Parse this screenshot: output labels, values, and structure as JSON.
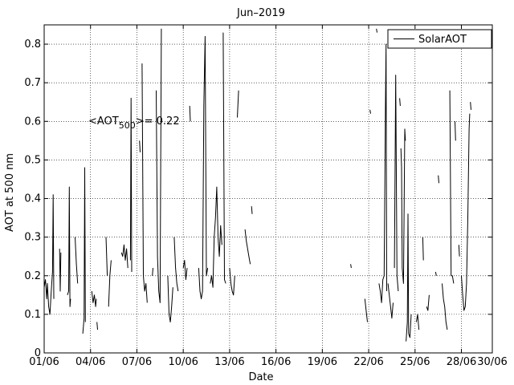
{
  "chart_data": {
    "type": "line",
    "title": "Jun–2019",
    "xlabel": "Date",
    "ylabel": "AOT at 500 nm",
    "xlim": [
      "2019-06-01",
      "2019-06-30"
    ],
    "ylim": [
      0,
      0.85
    ],
    "x_tick_labels": [
      "01/06",
      "04/06",
      "07/06",
      "10/06",
      "13/06",
      "16/06",
      "19/06",
      "22/06",
      "25/06",
      "28/06",
      "30/06"
    ],
    "x_tick_dates": [
      "2019-06-01",
      "2019-06-04",
      "2019-06-07",
      "2019-06-10",
      "2019-06-13",
      "2019-06-16",
      "2019-06-19",
      "2019-06-22",
      "2019-06-25",
      "2019-06-28",
      "2019-06-30"
    ],
    "y_ticks": [
      0,
      0.1,
      0.2,
      0.3,
      0.4,
      0.5,
      0.6,
      0.7,
      0.8
    ],
    "y_tick_labels": [
      "0",
      "0.1",
      "0.2",
      "0.3",
      "0.4",
      "0.5",
      "0.6",
      "0.7",
      "0.8"
    ],
    "grid": true,
    "legend_position": "top-right",
    "annotation": {
      "prefix": "<AOT",
      "subscript": "500",
      "suffix": ">= 0.22",
      "x": "2019-06-06",
      "y": 0.6
    },
    "series": [
      {
        "name": "SolarAOT",
        "color": "#000000",
        "segments": [
          [
            [
              "2019-06-01 00:00",
              0.17
            ],
            [
              "2019-06-01 02:00",
              0.19
            ],
            [
              "2019-06-01 04:00",
              0.14
            ],
            [
              "2019-06-01 05:00",
              0.18
            ],
            [
              "2019-06-01 07:00",
              0.12
            ],
            [
              "2019-06-01 09:00",
              0.1
            ],
            [
              "2019-06-01 11:00",
              0.16
            ],
            [
              "2019-06-01 13:00",
              0.21
            ],
            [
              "2019-06-01 14:00",
              0.41
            ],
            [
              "2019-06-01 15:00",
              0.14
            ]
          ],
          [
            [
              "2019-06-02 00:00",
              0.27
            ],
            [
              "2019-06-02 01:00",
              0.16
            ],
            [
              "2019-06-02 02:00",
              0.26
            ]
          ],
          [
            [
              "2019-06-02 12:00",
              0.15
            ],
            [
              "2019-06-02 14:00",
              0.16
            ],
            [
              "2019-06-02 15:00",
              0.43
            ],
            [
              "2019-06-02 16:00",
              0.12
            ],
            [
              "2019-06-02 17:00",
              0.14
            ]
          ],
          [
            [
              "2019-06-03 00:00",
              0.3
            ],
            [
              "2019-06-03 02:00",
              0.23
            ],
            [
              "2019-06-03 04:00",
              0.18
            ]
          ],
          [
            [
              "2019-06-03 12:00",
              0.05
            ],
            [
              "2019-06-03 14:00",
              0.09
            ],
            [
              "2019-06-03 15:00",
              0.48
            ],
            [
              "2019-06-03 16:00",
              0.08
            ]
          ],
          [
            [
              "2019-06-04 02:00",
              0.16
            ],
            [
              "2019-06-04 04:00",
              0.13
            ],
            [
              "2019-06-04 06:00",
              0.15
            ],
            [
              "2019-06-04 08:00",
              0.12
            ],
            [
              "2019-06-04 09:00",
              0.14
            ]
          ],
          [
            [
              "2019-06-04 10:00",
              0.08
            ],
            [
              "2019-06-04 11:00",
              0.06
            ]
          ],
          [
            [
              "2019-06-05 00:00",
              0.3
            ],
            [
              "2019-06-05 02:00",
              0.2
            ]
          ],
          [
            [
              "2019-06-05 04:00",
              0.12
            ],
            [
              "2019-06-05 06:00",
              0.2
            ],
            [
              "2019-06-05 08:00",
              0.24
            ]
          ],
          [
            [
              "2019-06-06 00:00",
              0.26
            ],
            [
              "2019-06-06 02:00",
              0.25
            ],
            [
              "2019-06-06 04:00",
              0.28
            ],
            [
              "2019-06-06 06:00",
              0.24
            ],
            [
              "2019-06-06 08:00",
              0.27
            ],
            [
              "2019-06-06 10:00",
              0.22
            ]
          ],
          [
            [
              "2019-06-06 14:00",
              0.24
            ],
            [
              "2019-06-06 15:00",
              0.66
            ],
            [
              "2019-06-06 16:00",
              0.21
            ]
          ],
          [
            [
              "2019-06-07 04:00",
              0.55
            ],
            [
              "2019-06-07 05:00",
              0.52
            ]
          ],
          [
            [
              "2019-06-07 08:00",
              0.75
            ],
            [
              "2019-06-07 10:00",
              0.2
            ],
            [
              "2019-06-07 12:00",
              0.16
            ],
            [
              "2019-06-07 14:00",
              0.18
            ],
            [
              "2019-06-07 16:00",
              0.13
            ]
          ],
          [
            [
              "2019-06-08 00:00",
              0.2
            ],
            [
              "2019-06-08 01:00",
              0.22
            ]
          ],
          [
            [
              "2019-06-08 06:00",
              0.68
            ],
            [
              "2019-06-08 08:00",
              0.25
            ],
            [
              "2019-06-08 10:00",
              0.16
            ],
            [
              "2019-06-08 12:00",
              0.13
            ],
            [
              "2019-06-08 14:00",
              0.84
            ]
          ],
          [
            [
              "2019-06-09 00:00",
              0.2
            ],
            [
              "2019-06-09 02:00",
              0.1
            ],
            [
              "2019-06-09 04:00",
              0.08
            ],
            [
              "2019-06-09 06:00",
              0.12
            ],
            [
              "2019-06-09 08:00",
              0.17
            ]
          ],
          [
            [
              "2019-06-09 10:00",
              0.3
            ],
            [
              "2019-06-09 12:00",
              0.22
            ],
            [
              "2019-06-09 14:00",
              0.18
            ],
            [
              "2019-06-09 16:00",
              0.16
            ]
          ],
          [
            [
              "2019-06-10 00:00",
              0.22
            ],
            [
              "2019-06-10 02:00",
              0.24
            ],
            [
              "2019-06-10 04:00",
              0.19
            ],
            [
              "2019-06-10 06:00",
              0.22
            ]
          ],
          [
            [
              "2019-06-10 10:00",
              0.64
            ],
            [
              "2019-06-10 11:00",
              0.6
            ]
          ],
          [
            [
              "2019-06-11 00:00",
              0.22
            ],
            [
              "2019-06-11 02:00",
              0.16
            ],
            [
              "2019-06-11 04:00",
              0.14
            ],
            [
              "2019-06-11 06:00",
              0.16
            ],
            [
              "2019-06-11 08:00",
              0.64
            ],
            [
              "2019-06-11 10:00",
              0.82
            ],
            [
              "2019-06-11 12:00",
              0.2
            ],
            [
              "2019-06-11 14:00",
              0.22
            ]
          ],
          [
            [
              "2019-06-11 18:00",
              0.18
            ],
            [
              "2019-06-11 20:00",
              0.2
            ],
            [
              "2019-06-11 22:00",
              0.17
            ],
            [
              "2019-06-12 00:00",
              0.3
            ],
            [
              "2019-06-12 02:00",
              0.35
            ],
            [
              "2019-06-12 04:00",
              0.43
            ],
            [
              "2019-06-12 06:00",
              0.3
            ],
            [
              "2019-06-12 08:00",
              0.25
            ],
            [
              "2019-06-12 10:00",
              0.33
            ],
            [
              "2019-06-12 12:00",
              0.28
            ]
          ],
          [
            [
              "2019-06-12 14:00",
              0.83
            ],
            [
              "2019-06-12 16:00",
              0.19
            ],
            [
              "2019-06-12 18:00",
              0.18
            ]
          ],
          [
            [
              "2019-06-13 00:00",
              0.22
            ],
            [
              "2019-06-13 02:00",
              0.18
            ],
            [
              "2019-06-13 04:00",
              0.16
            ],
            [
              "2019-06-13 06:00",
              0.15
            ],
            [
              "2019-06-13 08:00",
              0.2
            ]
          ],
          [
            [
              "2019-06-13 12:00",
              0.61
            ],
            [
              "2019-06-13 14:00",
              0.68
            ]
          ],
          [
            [
              "2019-06-14 00:00",
              0.32
            ],
            [
              "2019-06-14 02:00",
              0.29
            ],
            [
              "2019-06-14 04:00",
              0.27
            ],
            [
              "2019-06-14 06:00",
              0.25
            ],
            [
              "2019-06-14 08:00",
              0.23
            ]
          ],
          [
            [
              "2019-06-14 10:00",
              0.38
            ],
            [
              "2019-06-14 11:00",
              0.36
            ]
          ],
          [
            [
              "2019-06-20 20:00",
              0.23
            ],
            [
              "2019-06-20 21:00",
              0.22
            ]
          ],
          [
            [
              "2019-06-21 18:00",
              0.14
            ],
            [
              "2019-06-21 20:00",
              0.11
            ],
            [
              "2019-06-21 22:00",
              0.08
            ]
          ],
          [
            [
              "2019-06-22 02:00",
              0.63
            ],
            [
              "2019-06-22 03:00",
              0.62
            ]
          ],
          [
            [
              "2019-06-22 12:00",
              0.84
            ],
            [
              "2019-06-22 13:00",
              0.83
            ]
          ],
          [
            [
              "2019-06-22 16:00",
              0.18
            ],
            [
              "2019-06-22 18:00",
              0.16
            ],
            [
              "2019-06-22 20:00",
              0.13
            ],
            [
              "2019-06-22 22:00",
              0.19
            ],
            [
              "2019-06-23 00:00",
              0.2
            ],
            [
              "2019-06-23 02:00",
              0.63
            ],
            [
              "2019-06-23 03:00",
              0.8
            ],
            [
              "2019-06-23 04:00",
              0.16
            ]
          ],
          [
            [
              "2019-06-23 06:00",
              0.18
            ],
            [
              "2019-06-23 08:00",
              0.15
            ],
            [
              "2019-06-23 10:00",
              0.12
            ],
            [
              "2019-06-23 12:00",
              0.09
            ],
            [
              "2019-06-23 14:00",
              0.13
            ]
          ],
          [
            [
              "2019-06-23 16:00",
              0.22
            ],
            [
              "2019-06-23 18:00",
              0.72
            ],
            [
              "2019-06-23 20:00",
              0.2
            ],
            [
              "2019-06-23 22:00",
              0.16
            ]
          ],
          [
            [
              "2019-06-24 00:00",
              0.66
            ],
            [
              "2019-06-24 01:00",
              0.64
            ]
          ],
          [
            [
              "2019-06-24 02:00",
              0.53
            ],
            [
              "2019-06-24 03:00",
              0.48
            ],
            [
              "2019-06-24 04:00",
              0.22
            ],
            [
              "2019-06-24 06:00",
              0.18
            ],
            [
              "2019-06-24 08:00",
              0.58
            ],
            [
              "2019-06-24 09:00",
              0.55
            ]
          ],
          [
            [
              "2019-06-24 10:00",
              0.03
            ],
            [
              "2019-06-24 12:00",
              0.08
            ],
            [
              "2019-06-24 13:00",
              0.36
            ],
            [
              "2019-06-24 14:00",
              0.05
            ],
            [
              "2019-06-24 16:00",
              0.04
            ],
            [
              "2019-06-24 18:00",
              0.1
            ]
          ],
          [
            [
              "2019-06-25 02:00",
              0.08
            ],
            [
              "2019-06-25 04:00",
              0.1
            ],
            [
              "2019-06-25 06:00",
              0.06
            ]
          ],
          [
            [
              "2019-06-25 12:00",
              0.3
            ],
            [
              "2019-06-25 13:00",
              0.24
            ]
          ],
          [
            [
              "2019-06-25 18:00",
              0.12
            ],
            [
              "2019-06-25 20:00",
              0.11
            ],
            [
              "2019-06-25 22:00",
              0.15
            ]
          ],
          [
            [
              "2019-06-26 08:00",
              0.21
            ],
            [
              "2019-06-26 09:00",
              0.2
            ]
          ],
          [
            [
              "2019-06-26 12:00",
              0.46
            ],
            [
              "2019-06-26 13:00",
              0.44
            ]
          ],
          [
            [
              "2019-06-26 18:00",
              0.18
            ],
            [
              "2019-06-26 20:00",
              0.14
            ],
            [
              "2019-06-26 22:00",
              0.12
            ],
            [
              "2019-06-27 00:00",
              0.08
            ],
            [
              "2019-06-27 02:00",
              0.06
            ]
          ],
          [
            [
              "2019-06-27 06:00",
              0.68
            ],
            [
              "2019-06-27 08:00",
              0.2
            ],
            [
              "2019-06-27 10:00",
              0.2
            ],
            [
              "2019-06-27 12:00",
              0.18
            ]
          ],
          [
            [
              "2019-06-27 14:00",
              0.6
            ],
            [
              "2019-06-27 15:00",
              0.55
            ]
          ],
          [
            [
              "2019-06-27 20:00",
              0.28
            ],
            [
              "2019-06-27 21:00",
              0.25
            ]
          ],
          [
            [
              "2019-06-28 00:00",
              0.2
            ],
            [
              "2019-06-28 02:00",
              0.15
            ],
            [
              "2019-06-28 04:00",
              0.11
            ],
            [
              "2019-06-28 06:00",
              0.12
            ],
            [
              "2019-06-28 08:00",
              0.18
            ],
            [
              "2019-06-28 10:00",
              0.35
            ],
            [
              "2019-06-28 12:00",
              0.58
            ],
            [
              "2019-06-28 13:00",
              0.62
            ]
          ],
          [
            [
              "2019-06-28 14:00",
              0.65
            ],
            [
              "2019-06-28 15:00",
              0.63
            ]
          ]
        ]
      }
    ]
  }
}
